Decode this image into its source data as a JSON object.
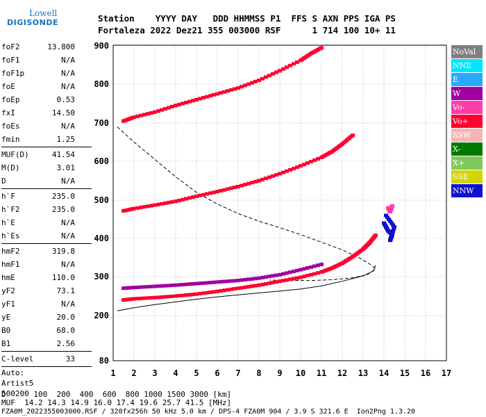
{
  "logo": {
    "line1": "Lowell",
    "line2": "DIGISONDE"
  },
  "header": {
    "row1": "Station    YYYY DAY   DDD HHMMSS P1  FFS S AXN PPS IGA PS",
    "row2": "Fortaleza 2022 Dez21 355 003000 RSF      1 714 100 10+ 11"
  },
  "parameters": [
    {
      "k": "foF2",
      "v": "13.800"
    },
    {
      "k": "foF1",
      "v": "N/A"
    },
    {
      "k": "foF1p",
      "v": "N/A"
    },
    {
      "k": "foE",
      "v": "N/A"
    },
    {
      "k": "foEp",
      "v": "0.53"
    },
    {
      "k": "fxI",
      "v": "14.50"
    },
    {
      "k": "foEs",
      "v": "N/A"
    },
    {
      "k": "fmin",
      "v": "1.25"
    },
    {
      "k": "MUF(D)",
      "v": "41.54"
    },
    {
      "k": "M(D)",
      "v": "3.01"
    },
    {
      "k": "D",
      "v": "N/A"
    },
    {
      "k": "h`F",
      "v": "235.0"
    },
    {
      "k": "h`F2",
      "v": "235.0"
    },
    {
      "k": "h`E",
      "v": "N/A"
    },
    {
      "k": "h`Es",
      "v": "N/A"
    },
    {
      "k": "hmF2",
      "v": "319.8"
    },
    {
      "k": "hmF1",
      "v": "N/A"
    },
    {
      "k": "hmE",
      "v": "110.0"
    },
    {
      "k": "yF2",
      "v": "73.1"
    },
    {
      "k": "yF1",
      "v": "N/A"
    },
    {
      "k": "yE",
      "v": "20.0"
    },
    {
      "k": "B0",
      "v": "68.0"
    },
    {
      "k": "B1",
      "v": "2.56"
    },
    {
      "k": "C-level",
      "v": "33"
    }
  ],
  "auto": {
    "l1": "Auto:",
    "l2": "Artist5",
    "l3": "500200"
  },
  "legend": [
    {
      "label": "NoVal",
      "color": "#808080"
    },
    {
      "label": "NNE",
      "color": "#00e5ff"
    },
    {
      "label": "E",
      "color": "#2aa7ff"
    },
    {
      "label": "W",
      "color": "#a000a0"
    },
    {
      "label": "Vo-",
      "color": "#ff3ca8"
    },
    {
      "label": "Vo+",
      "color": "#ff0030"
    },
    {
      "label": "SSW",
      "color": "#f5b5b5"
    },
    {
      "label": "X-",
      "color": "#007a00"
    },
    {
      "label": "X+",
      "color": "#80c860"
    },
    {
      "label": "SSE",
      "color": "#d4d400"
    },
    {
      "label": "NNW",
      "color": "#1010d0"
    }
  ],
  "footer": {
    "d_row": "D      100  200  400  600  800 1000 1500 3000 [km]",
    "muf_row": "MUF  14.2 14.3 14.9 16.0 17.4 19.6 25.7 41.5 [MHz]",
    "file_row": "FZA0M_2022355003000.RSF / 320fx256h 50 kHz 5.0 km / DPS-4 FZA0M 904 / 3.9 S 321.6 E  Ion2Png 1.3.20"
  },
  "chart_data": {
    "type": "scatter",
    "xlim": [
      1,
      17
    ],
    "ylim": [
      80,
      900
    ],
    "xticks": [
      "1",
      "2",
      "3",
      "4",
      "5",
      "6",
      "7",
      "8",
      "9",
      "10",
      "11",
      "12",
      "13",
      "14",
      "15",
      "16",
      "17"
    ],
    "yticks": [
      "80",
      "200",
      "300",
      "400",
      "500",
      "600",
      "700",
      "800",
      "900"
    ],
    "grid": true,
    "series": [
      {
        "color": "#ff0030",
        "points": [
          [
            1.5,
            240
          ],
          [
            2,
            243
          ],
          [
            3,
            246
          ],
          [
            4,
            250
          ],
          [
            5,
            255
          ],
          [
            6,
            262
          ],
          [
            7,
            270
          ],
          [
            8,
            278
          ],
          [
            9,
            288
          ],
          [
            10,
            298
          ],
          [
            11,
            312
          ],
          [
            11.5,
            322
          ],
          [
            12,
            335
          ],
          [
            12.5,
            352
          ],
          [
            13,
            372
          ],
          [
            13.3,
            388
          ],
          [
            13.6,
            408
          ]
        ]
      },
      {
        "color": "#ff0030",
        "points": [
          [
            1.5,
            472
          ],
          [
            2,
            478
          ],
          [
            3,
            487
          ],
          [
            4,
            497
          ],
          [
            5,
            510
          ],
          [
            6,
            522
          ],
          [
            7,
            535
          ],
          [
            8,
            550
          ],
          [
            9,
            568
          ],
          [
            10,
            588
          ],
          [
            11,
            610
          ],
          [
            11.5,
            625
          ],
          [
            12,
            645
          ],
          [
            12.5,
            668
          ]
        ]
      },
      {
        "color": "#ff0030",
        "points": [
          [
            1.5,
            705
          ],
          [
            2,
            715
          ],
          [
            3,
            728
          ],
          [
            4,
            745
          ],
          [
            5,
            760
          ],
          [
            6,
            775
          ],
          [
            7,
            790
          ],
          [
            8,
            810
          ],
          [
            9,
            835
          ],
          [
            10,
            862
          ],
          [
            10.5,
            880
          ],
          [
            11,
            895
          ]
        ]
      },
      {
        "color": "#a000a0",
        "points": [
          [
            1.5,
            270
          ],
          [
            2,
            272
          ],
          [
            3,
            275
          ],
          [
            4,
            278
          ],
          [
            5,
            282
          ],
          [
            6,
            286
          ],
          [
            7,
            290
          ],
          [
            8,
            296
          ],
          [
            9,
            305
          ],
          [
            10,
            318
          ],
          [
            11,
            332
          ]
        ]
      },
      {
        "color": "#1010d0",
        "points": [
          [
            14,
            440
          ],
          [
            14.2,
            420
          ],
          [
            14.4,
            410
          ],
          [
            14.3,
            395
          ],
          [
            14.5,
            430
          ],
          [
            14.1,
            460
          ]
        ]
      },
      {
        "color": "#ff3ca8",
        "points": [
          [
            14.2,
            480
          ],
          [
            14.3,
            470
          ],
          [
            14.4,
            485
          ]
        ]
      }
    ],
    "trace": {
      "color": "#000000",
      "points": [
        [
          1.2,
          212
        ],
        [
          2,
          220
        ],
        [
          3,
          228
        ],
        [
          4,
          235
        ],
        [
          5,
          242
        ],
        [
          6,
          248
        ],
        [
          7,
          253
        ],
        [
          8,
          258
        ],
        [
          9,
          263
        ],
        [
          10,
          268
        ],
        [
          11,
          276
        ],
        [
          12,
          288
        ],
        [
          13,
          302
        ],
        [
          13.5,
          315
        ],
        [
          13.6,
          330
        ]
      ]
    },
    "profile": {
      "color": "#000000",
      "points": [
        [
          1.2,
          690
        ],
        [
          2,
          650
        ],
        [
          3,
          605
        ],
        [
          4,
          560
        ],
        [
          5,
          520
        ],
        [
          6,
          490
        ],
        [
          7,
          465
        ],
        [
          8,
          445
        ],
        [
          9,
          428
        ],
        [
          10,
          410
        ],
        [
          11,
          390
        ],
        [
          12,
          370
        ],
        [
          12.8,
          350
        ],
        [
          13.4,
          330
        ],
        [
          13.6,
          320
        ],
        [
          13.2,
          305
        ],
        [
          12.5,
          297
        ],
        [
          11.5,
          292
        ],
        [
          10.5,
          290
        ],
        [
          9.5,
          290
        ],
        [
          8.5,
          291
        ]
      ]
    }
  }
}
